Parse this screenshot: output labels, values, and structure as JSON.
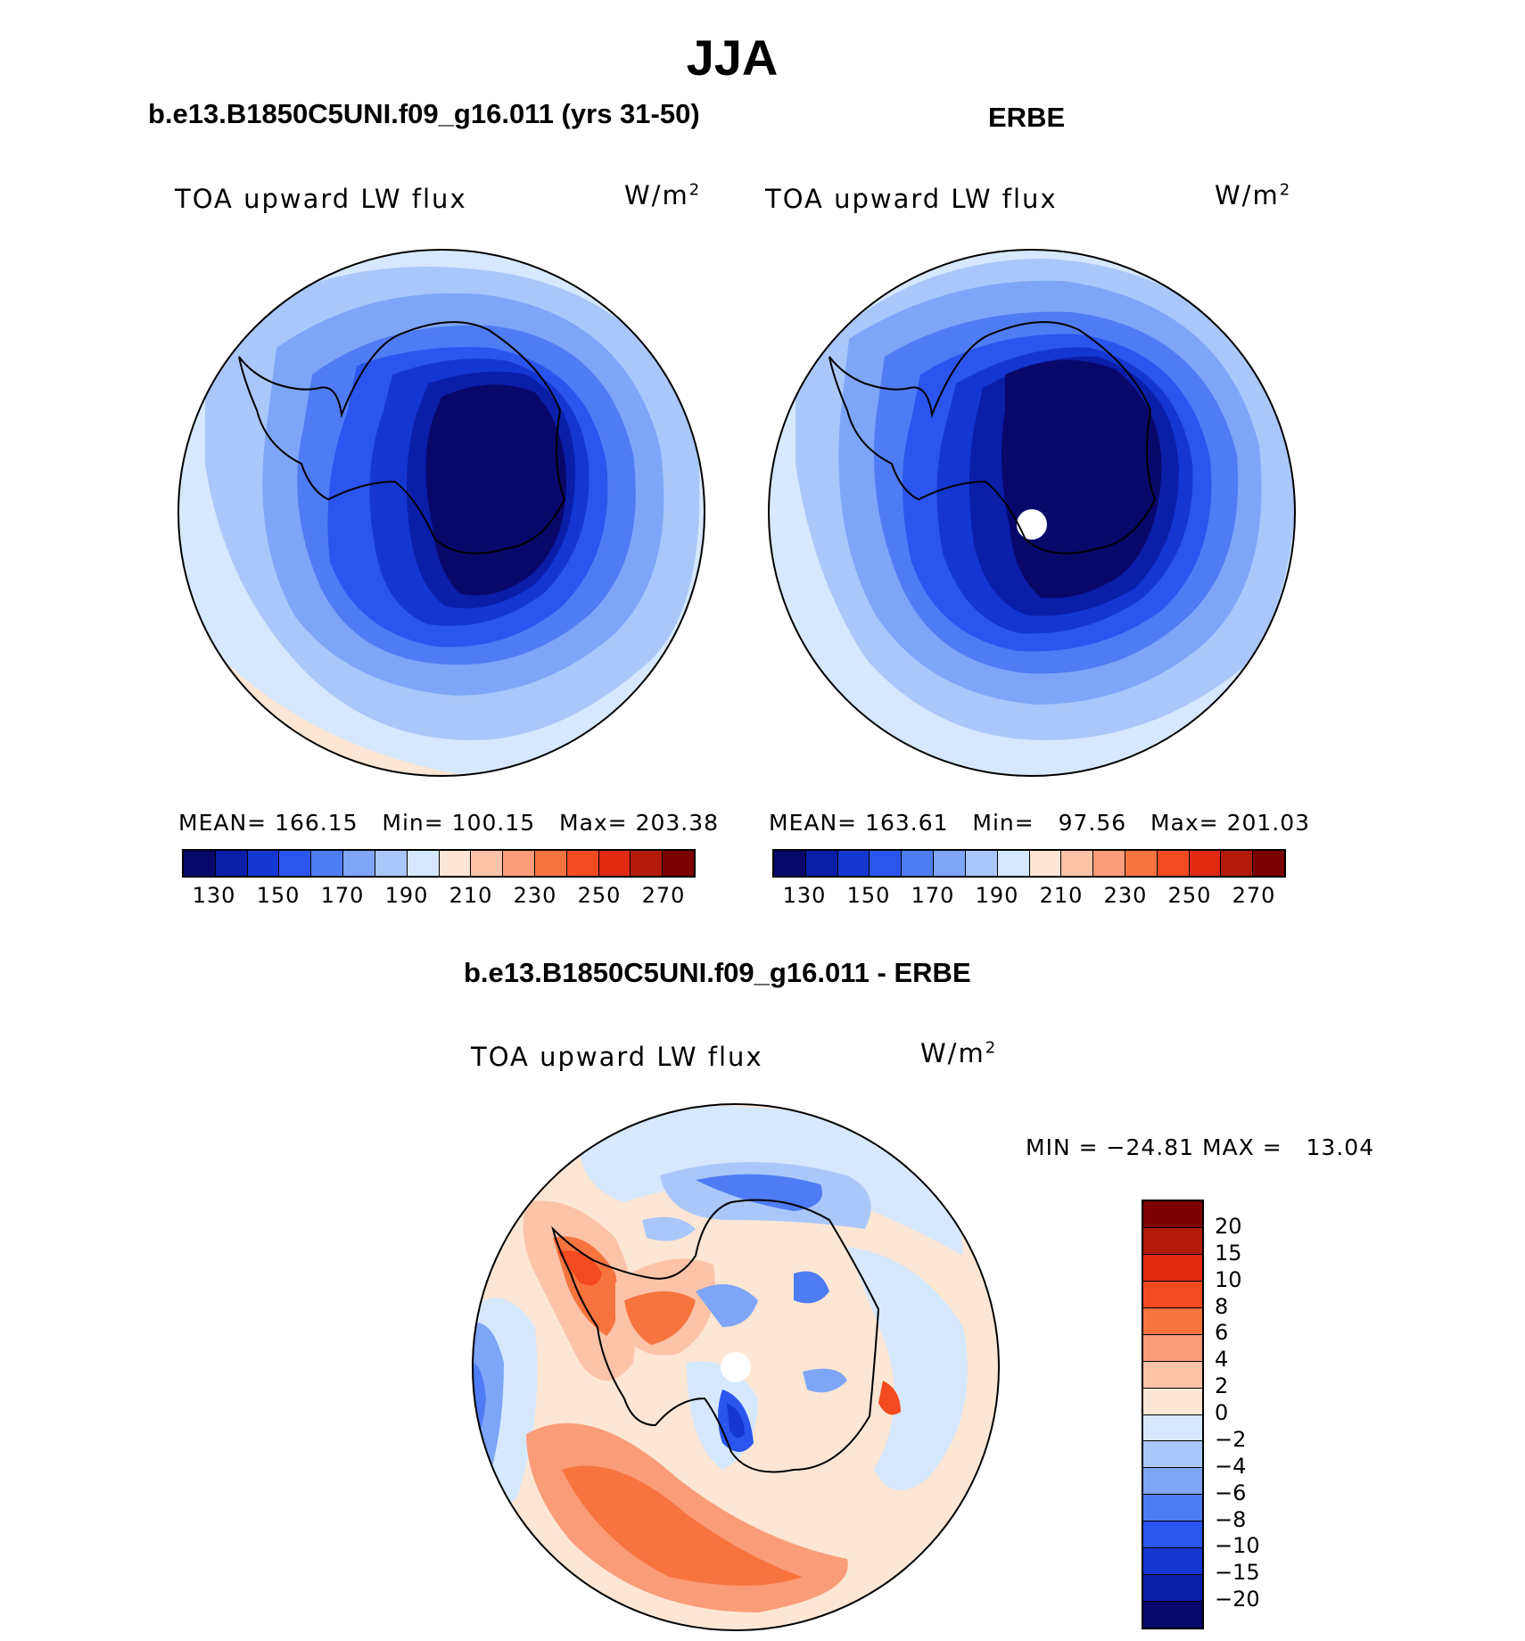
{
  "title": "JJA",
  "panels": [
    {
      "title": "b.e13.B1850C5UNI.f09_g16.011 (yrs 31-50)",
      "variable": "TOA upward LW flux",
      "units_base": "W/m",
      "units_exp": "2",
      "stats": {
        "mean_label": "MEAN=",
        "mean": "166.15",
        "min_label": "Min=",
        "min": "100.15",
        "max_label": "Max=",
        "max": "203.38"
      }
    },
    {
      "title": "ERBE",
      "variable": "TOA upward LW flux",
      "units_base": "W/m",
      "units_exp": "2",
      "stats": {
        "mean_label": "MEAN=",
        "mean": "163.61",
        "min_label": "Min=",
        "min": "97.56",
        "max_label": "Max=",
        "max": "201.03"
      }
    },
    {
      "title": "b.e13.B1850C5UNI.f09_g16.011 - ERBE",
      "variable": "TOA upward LW flux",
      "units_base": "W/m",
      "units_exp": "2",
      "stats": {
        "min_label": "MIN =",
        "min": "−24.81",
        "max_label": "MAX =",
        "max": "13.04"
      }
    }
  ],
  "colorbar_abs": {
    "labels": [
      "130",
      "150",
      "170",
      "190",
      "210",
      "230",
      "250",
      "270"
    ],
    "colors": [
      "#08086b",
      "#0a1ea8",
      "#1437d2",
      "#2a55ee",
      "#4e7cf4",
      "#7ea5f8",
      "#aac7fb",
      "#d6e8fd",
      "#fde6d4",
      "#fcc3a8",
      "#fb9c78",
      "#f7743f",
      "#f44a1f",
      "#e02a12",
      "#b21a0a",
      "#7c0000"
    ]
  },
  "colorbar_diff": {
    "labels": [
      "20",
      "15",
      "10",
      "8",
      "6",
      "4",
      "2",
      "0",
      "−2",
      "−4",
      "−6",
      "−8",
      "−10",
      "−15",
      "−20"
    ],
    "colors": [
      "#7c0000",
      "#b21a0a",
      "#e02a12",
      "#f44a1f",
      "#f7743f",
      "#fb9c78",
      "#fcc3a8",
      "#fde6d4",
      "#d6e8fd",
      "#aac7fb",
      "#7ea5f8",
      "#4e7cf4",
      "#2a55ee",
      "#1437d2",
      "#0a1ea8",
      "#08086b"
    ]
  },
  "map_colors": {
    "c130": "#08086b",
    "c150": "#0a1ea8",
    "c160": "#1437d2",
    "c170": "#2a55ee",
    "c180": "#4e7cf4",
    "c190": "#7ea5f8",
    "c200": "#aac7fb",
    "c205": "#d6e8fd",
    "c210": "#fde6d4",
    "pos2": "#fde6d4",
    "pos4": "#fcc3a8",
    "pos6": "#fb9c78",
    "pos8": "#f7743f",
    "pos10": "#f44a1f",
    "neg2": "#d6e8fd",
    "neg4": "#aac7fb",
    "neg6": "#7ea5f8",
    "neg8": "#4e7cf4",
    "neg10": "#2a55ee",
    "neg15": "#1437d2"
  }
}
